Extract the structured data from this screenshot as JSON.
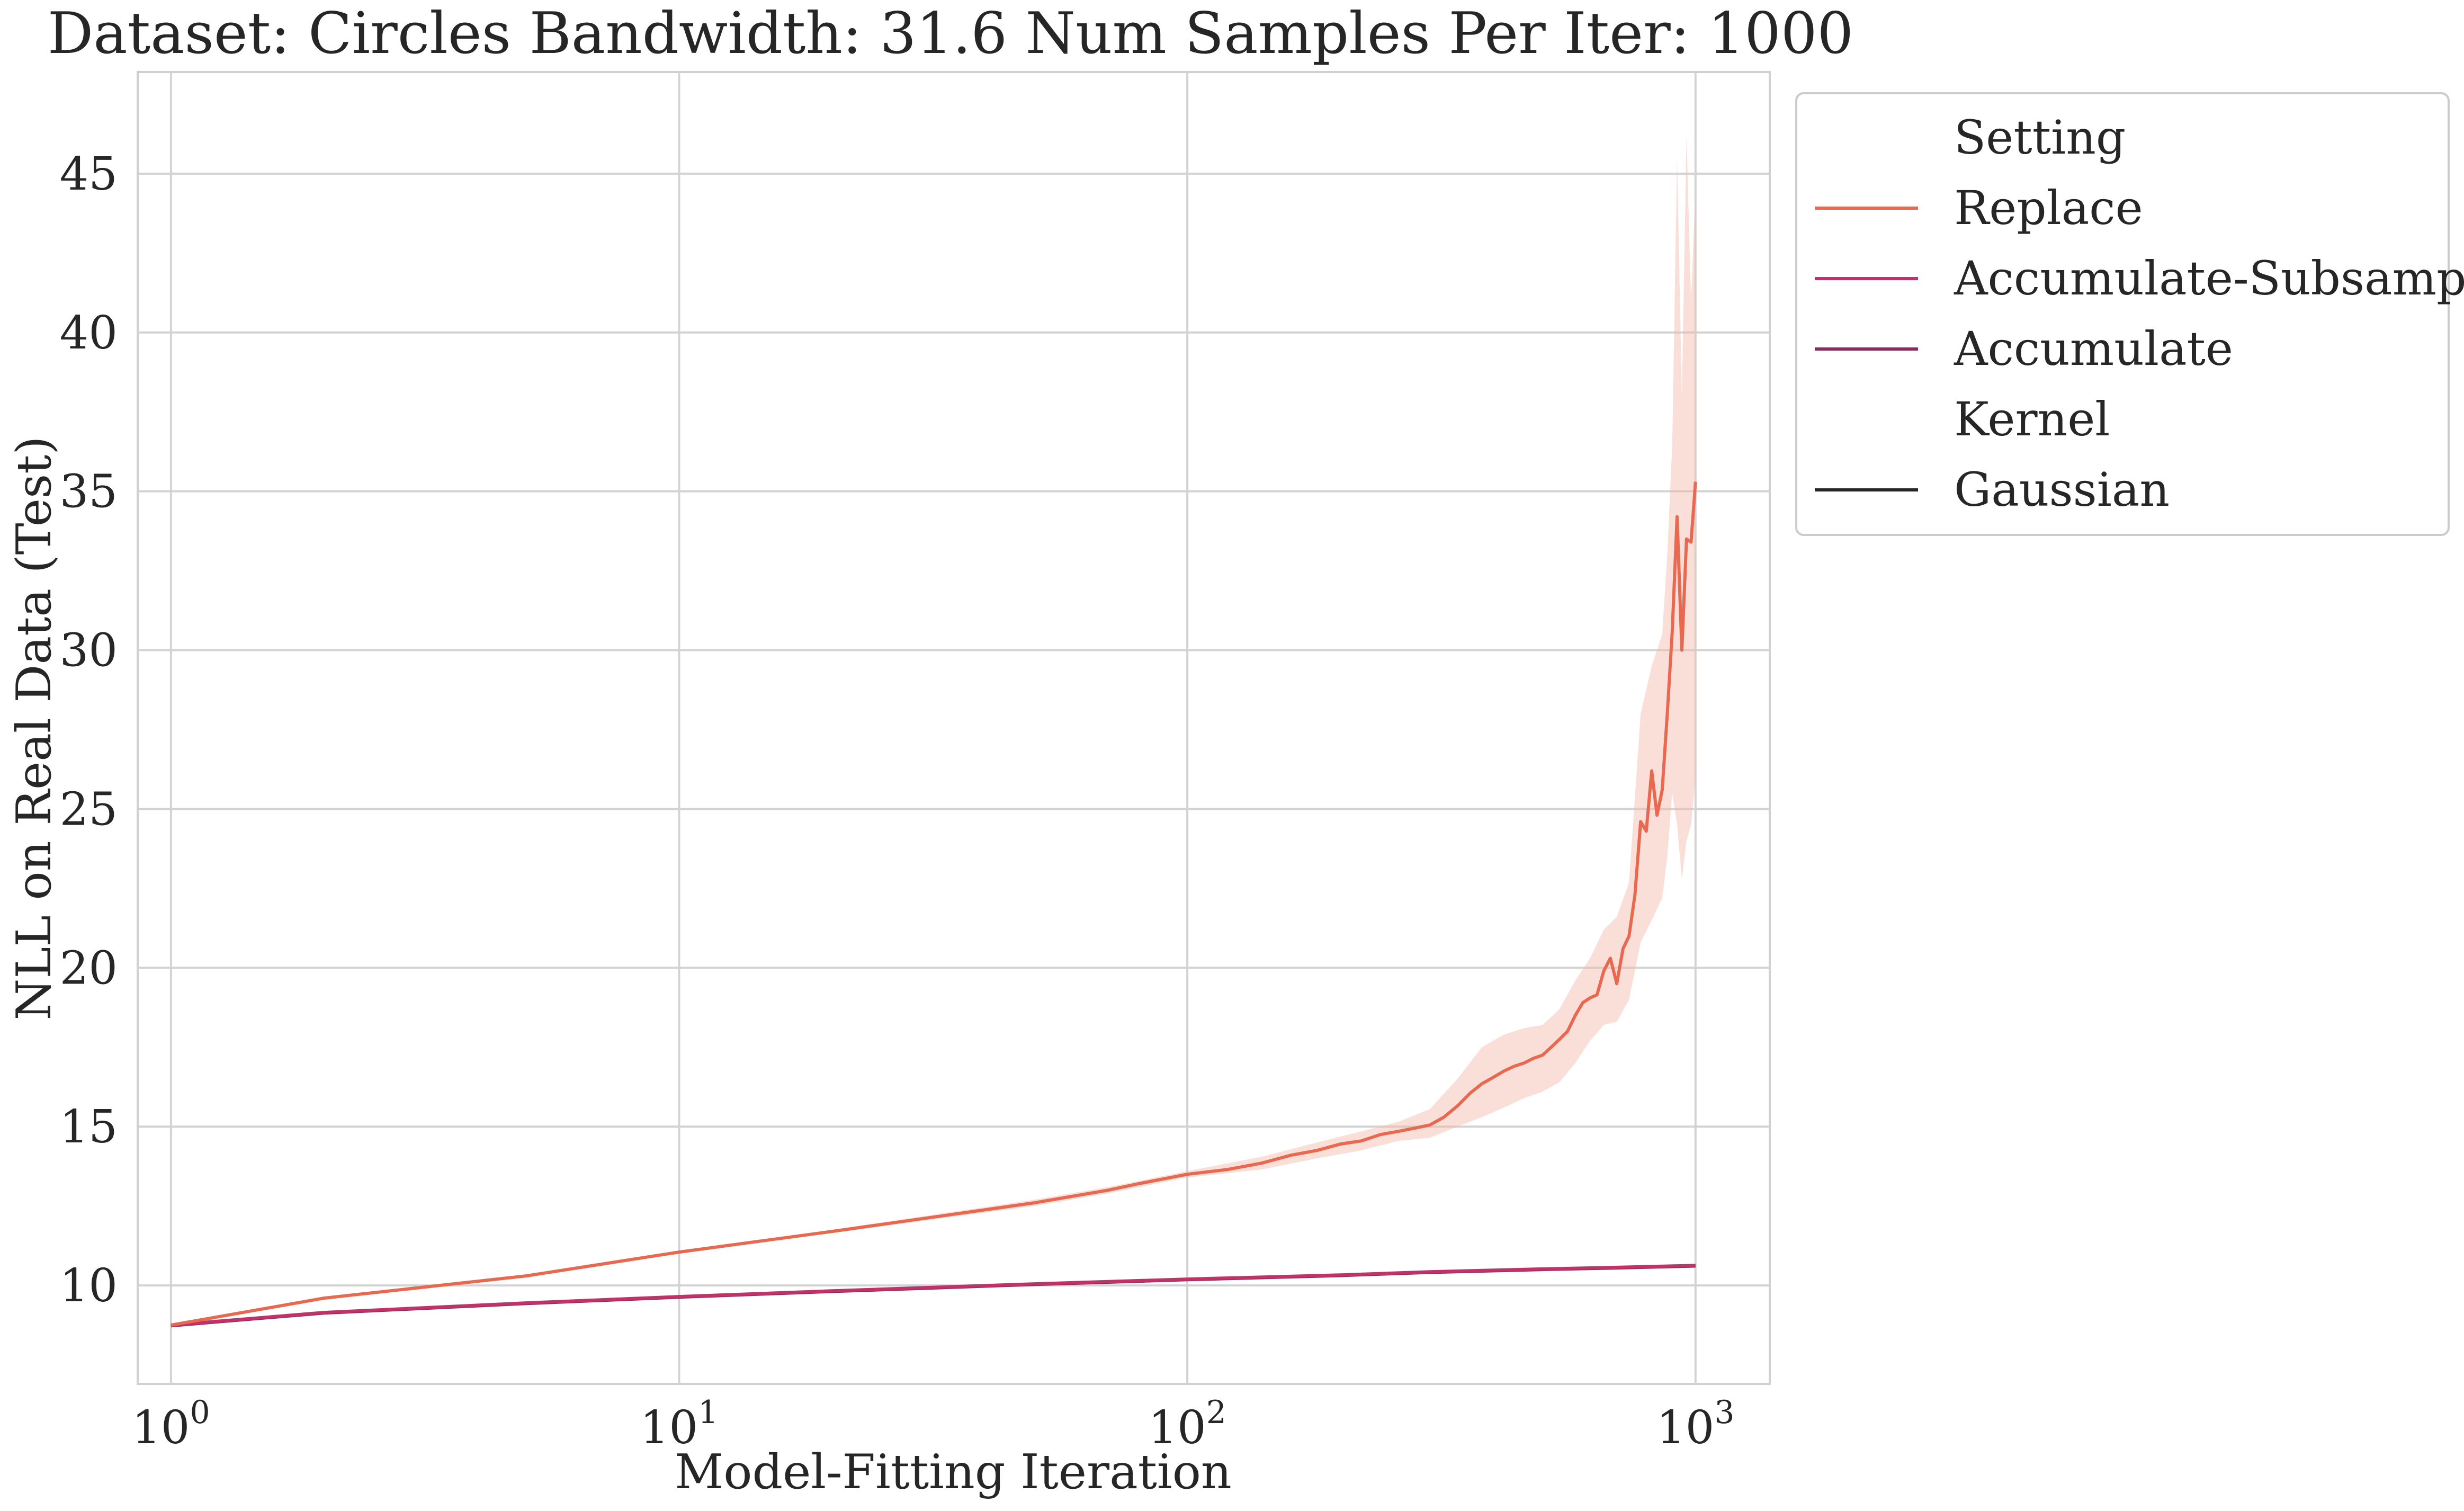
{
  "chart_data": {
    "type": "line",
    "title": "Dataset: Circles Bandwidth: 31.6 Num Samples Per Iter: 1000",
    "xlabel": "Model-Fitting Iteration",
    "ylabel": "NLL on Real Data (Test)",
    "x_scale": "log",
    "xlim": [
      0.86,
      1400
    ],
    "ylim": [
      6.9,
      48.2
    ],
    "grid": true,
    "x_ticks": [
      {
        "value": 1,
        "base": "10",
        "exp": "0"
      },
      {
        "value": 10,
        "base": "10",
        "exp": "1"
      },
      {
        "value": 100,
        "base": "10",
        "exp": "2"
      },
      {
        "value": 1000,
        "base": "10",
        "exp": "3"
      }
    ],
    "y_ticks": [
      10,
      15,
      20,
      25,
      30,
      35,
      40,
      45
    ],
    "legend": {
      "position": "outside-right",
      "sections": [
        {
          "title": "Setting",
          "entries": [
            {
              "label": "Replace",
              "color": "#e8694f"
            },
            {
              "label": "Accumulate-Subsample",
              "color": "#c23267"
            },
            {
              "label": "Accumulate",
              "color": "#8a2a61"
            }
          ]
        },
        {
          "title": "Kernel",
          "entries": [
            {
              "label": "Gaussian",
              "color": "#262626"
            }
          ]
        }
      ]
    },
    "series": [
      {
        "name": "Replace",
        "color": "#e8694f",
        "band_color": "#f4b9ab",
        "points": [
          [
            1,
            8.75
          ],
          [
            2,
            9.6
          ],
          [
            5,
            10.3
          ],
          [
            10,
            11.05
          ],
          [
            20,
            11.7
          ],
          [
            50,
            12.6
          ],
          [
            70,
            13.0
          ],
          [
            80,
            13.2
          ],
          [
            100,
            13.5
          ],
          [
            120,
            13.65
          ],
          [
            140,
            13.85
          ],
          [
            160,
            14.1
          ],
          [
            180,
            14.25
          ],
          [
            200,
            14.45
          ],
          [
            220,
            14.55
          ],
          [
            240,
            14.75
          ],
          [
            260,
            14.85
          ],
          [
            280,
            14.95
          ],
          [
            300,
            15.05
          ],
          [
            320,
            15.3
          ],
          [
            340,
            15.65
          ],
          [
            360,
            16.05
          ],
          [
            380,
            16.35
          ],
          [
            400,
            16.55
          ],
          [
            420,
            16.75
          ],
          [
            440,
            16.9
          ],
          [
            460,
            17.0
          ],
          [
            480,
            17.15
          ],
          [
            500,
            17.25
          ],
          [
            520,
            17.5
          ],
          [
            540,
            17.75
          ],
          [
            560,
            18.0
          ],
          [
            580,
            18.5
          ],
          [
            600,
            18.9
          ],
          [
            620,
            19.05
          ],
          [
            640,
            19.15
          ],
          [
            660,
            19.9
          ],
          [
            680,
            20.3
          ],
          [
            700,
            19.5
          ],
          [
            720,
            20.6
          ],
          [
            740,
            21.0
          ],
          [
            760,
            22.3
          ],
          [
            780,
            24.6
          ],
          [
            800,
            24.3
          ],
          [
            820,
            26.2
          ],
          [
            840,
            24.8
          ],
          [
            860,
            25.6
          ],
          [
            880,
            28.0
          ],
          [
            900,
            30.6
          ],
          [
            920,
            34.2
          ],
          [
            940,
            30.0
          ],
          [
            960,
            33.5
          ],
          [
            980,
            33.4
          ],
          [
            1000,
            35.3
          ]
        ],
        "band_upper": [
          [
            1,
            8.8
          ],
          [
            2,
            9.65
          ],
          [
            5,
            10.35
          ],
          [
            10,
            11.1
          ],
          [
            20,
            11.75
          ],
          [
            50,
            12.7
          ],
          [
            70,
            13.1
          ],
          [
            100,
            13.6
          ],
          [
            140,
            14.05
          ],
          [
            180,
            14.5
          ],
          [
            220,
            14.85
          ],
          [
            260,
            15.15
          ],
          [
            300,
            15.55
          ],
          [
            340,
            16.5
          ],
          [
            380,
            17.5
          ],
          [
            420,
            17.9
          ],
          [
            460,
            18.1
          ],
          [
            500,
            18.2
          ],
          [
            540,
            18.7
          ],
          [
            580,
            19.6
          ],
          [
            620,
            20.3
          ],
          [
            660,
            21.2
          ],
          [
            700,
            21.6
          ],
          [
            740,
            22.7
          ],
          [
            780,
            28.0
          ],
          [
            820,
            29.5
          ],
          [
            860,
            30.5
          ],
          [
            880,
            33.0
          ],
          [
            900,
            36.5
          ],
          [
            920,
            45.5
          ],
          [
            940,
            38.0
          ],
          [
            960,
            46.2
          ],
          [
            980,
            41.0
          ],
          [
            1000,
            44.5
          ]
        ],
        "band_lower": [
          [
            1,
            8.7
          ],
          [
            2,
            9.55
          ],
          [
            5,
            10.25
          ],
          [
            10,
            11.0
          ],
          [
            20,
            11.65
          ],
          [
            50,
            12.5
          ],
          [
            70,
            12.9
          ],
          [
            100,
            13.4
          ],
          [
            140,
            13.65
          ],
          [
            180,
            14.0
          ],
          [
            220,
            14.25
          ],
          [
            260,
            14.55
          ],
          [
            300,
            14.65
          ],
          [
            340,
            15.0
          ],
          [
            380,
            15.3
          ],
          [
            420,
            15.6
          ],
          [
            460,
            15.9
          ],
          [
            500,
            16.1
          ],
          [
            540,
            16.4
          ],
          [
            580,
            17.0
          ],
          [
            620,
            17.7
          ],
          [
            660,
            18.2
          ],
          [
            700,
            18.3
          ],
          [
            740,
            19.0
          ],
          [
            780,
            20.8
          ],
          [
            820,
            21.5
          ],
          [
            860,
            22.2
          ],
          [
            880,
            23.5
          ],
          [
            900,
            25.5
          ],
          [
            920,
            24.5
          ],
          [
            940,
            22.8
          ],
          [
            960,
            24.0
          ],
          [
            980,
            24.5
          ],
          [
            1000,
            26.0
          ]
        ]
      },
      {
        "name": "Accumulate-Subsample",
        "color": "#c23267",
        "points": [
          [
            1,
            8.75
          ],
          [
            2,
            9.15
          ],
          [
            5,
            9.45
          ],
          [
            10,
            9.65
          ],
          [
            20,
            9.83
          ],
          [
            50,
            10.05
          ],
          [
            100,
            10.2
          ],
          [
            200,
            10.33
          ],
          [
            300,
            10.43
          ],
          [
            500,
            10.52
          ],
          [
            700,
            10.57
          ],
          [
            1000,
            10.63
          ]
        ]
      },
      {
        "name": "Accumulate",
        "color": "#8a2a61",
        "points": [
          [
            1,
            8.73
          ],
          [
            2,
            9.13
          ],
          [
            5,
            9.43
          ],
          [
            10,
            9.63
          ],
          [
            20,
            9.81
          ],
          [
            50,
            10.03
          ],
          [
            100,
            10.18
          ],
          [
            200,
            10.31
          ],
          [
            300,
            10.41
          ],
          [
            500,
            10.5
          ],
          [
            700,
            10.55
          ],
          [
            1000,
            10.61
          ]
        ]
      }
    ]
  }
}
